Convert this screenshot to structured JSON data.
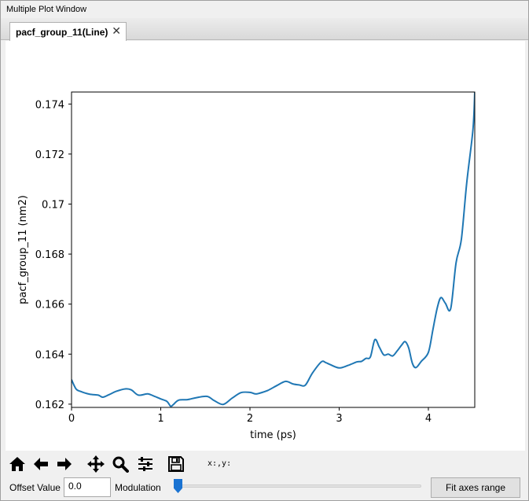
{
  "window": {
    "title": "Multiple Plot Window"
  },
  "tab": {
    "label": "pacf_group_11(Line)",
    "close_glyph": "✕"
  },
  "toolbar": {
    "icons": [
      "home-icon",
      "back-arrow-icon",
      "forward-arrow-icon",
      "pan-move-icon",
      "zoom-magnifier-icon",
      "configure-subplots-icon",
      "save-disk-icon"
    ],
    "coords_text": "x:,y:"
  },
  "controls": {
    "offset_label": "Offset Value",
    "offset_value": "0.0",
    "modulation_label": "Modulation",
    "modulation_value": 0,
    "fit_button_label": "Fit axes range"
  },
  "chart_data": {
    "type": "line",
    "title": "",
    "xlabel": "time (ps)",
    "ylabel": "pacf_group_11 (nm2)",
    "xlim": [
      0,
      4.52
    ],
    "ylim": [
      0.16187,
      0.17448
    ],
    "x_ticks": [
      0,
      1,
      2,
      3,
      4
    ],
    "x_tick_labels": [
      "0",
      "1",
      "2",
      "3",
      "4"
    ],
    "y_ticks": [
      0.162,
      0.164,
      0.166,
      0.168,
      0.17,
      0.172,
      0.174
    ],
    "y_tick_labels": [
      "0.162",
      "0.164",
      "0.166",
      "0.168",
      "0.17",
      "0.172",
      "0.174"
    ],
    "grid": false,
    "line_color": "#1f77b4",
    "series": [
      {
        "x": [
          0,
          0.05,
          0.1,
          0.2,
          0.3,
          0.35,
          0.42,
          0.5,
          0.6,
          0.67,
          0.75,
          0.85,
          0.92,
          1.0,
          1.07,
          1.11,
          1.14,
          1.2,
          1.3,
          1.4,
          1.52,
          1.6,
          1.7,
          1.8,
          1.9,
          2.0,
          2.06,
          2.1,
          2.2,
          2.3,
          2.4,
          2.48,
          2.55,
          2.62,
          2.7,
          2.8,
          2.85,
          2.9,
          3.0,
          3.1,
          3.2,
          3.25,
          3.3,
          3.35,
          3.4,
          3.45,
          3.5,
          3.55,
          3.6,
          3.65,
          3.7,
          3.74,
          3.78,
          3.82,
          3.86,
          3.92,
          4.0,
          4.05,
          4.1,
          4.14,
          4.19,
          4.25,
          4.31,
          4.37,
          4.43,
          4.5,
          4.52
        ],
        "y": [
          0.16298,
          0.16261,
          0.16251,
          0.1624,
          0.16236,
          0.16228,
          0.16238,
          0.16251,
          0.16261,
          0.16257,
          0.16236,
          0.16241,
          0.16233,
          0.16221,
          0.16211,
          0.16192,
          0.16198,
          0.16216,
          0.16218,
          0.16226,
          0.16231,
          0.16214,
          0.16199,
          0.16224,
          0.16246,
          0.16247,
          0.16241,
          0.16243,
          0.16255,
          0.16274,
          0.16291,
          0.16281,
          0.16277,
          0.16276,
          0.16324,
          0.16369,
          0.16366,
          0.16358,
          0.16345,
          0.16355,
          0.16369,
          0.16371,
          0.16383,
          0.16389,
          0.16458,
          0.16428,
          0.16397,
          0.164,
          0.16393,
          0.16413,
          0.16436,
          0.1645,
          0.16424,
          0.16364,
          0.16346,
          0.16371,
          0.16407,
          0.16497,
          0.16585,
          0.16626,
          0.16604,
          0.16582,
          0.16765,
          0.1686,
          0.17085,
          0.17298,
          0.17448
        ]
      }
    ]
  }
}
